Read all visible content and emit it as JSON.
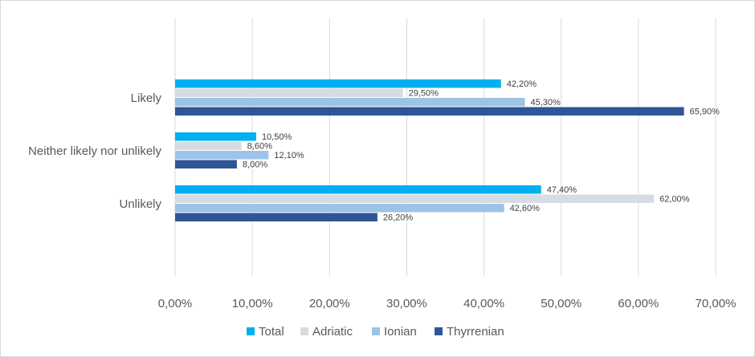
{
  "chart_data": {
    "type": "bar",
    "orientation": "horizontal",
    "title": "",
    "xlabel": "",
    "ylabel": "",
    "categories": [
      "Likely",
      "Neither likely nor unlikely",
      "Unlikely"
    ],
    "series": [
      {
        "name": "Total",
        "color": "#00b0f0",
        "values": [
          42.2,
          10.5,
          47.4
        ],
        "labels": [
          "42,20%",
          "10,50%",
          "47,40%"
        ]
      },
      {
        "name": "Adriatic",
        "color": "#d6dce4",
        "values": [
          29.5,
          8.6,
          62.0
        ],
        "labels": [
          "29,50%",
          "8,60%",
          "62,00%"
        ]
      },
      {
        "name": "Ionian",
        "color": "#9dc3e6",
        "values": [
          45.3,
          12.1,
          42.6
        ],
        "labels": [
          "45,30%",
          "12,10%",
          "42,60%"
        ]
      },
      {
        "name": "Thyrrenian",
        "color": "#2f5597",
        "values": [
          65.9,
          8.0,
          26.2
        ],
        "labels": [
          "65,90%",
          "8,00%",
          "26,20%"
        ]
      }
    ],
    "xlim": [
      0,
      70
    ],
    "xticks": [
      "0,00%",
      "10,00%",
      "20,00%",
      "30,00%",
      "40,00%",
      "50,00%",
      "60,00%",
      "70,00%"
    ],
    "grid": "vertical",
    "legend_position": "bottom"
  }
}
